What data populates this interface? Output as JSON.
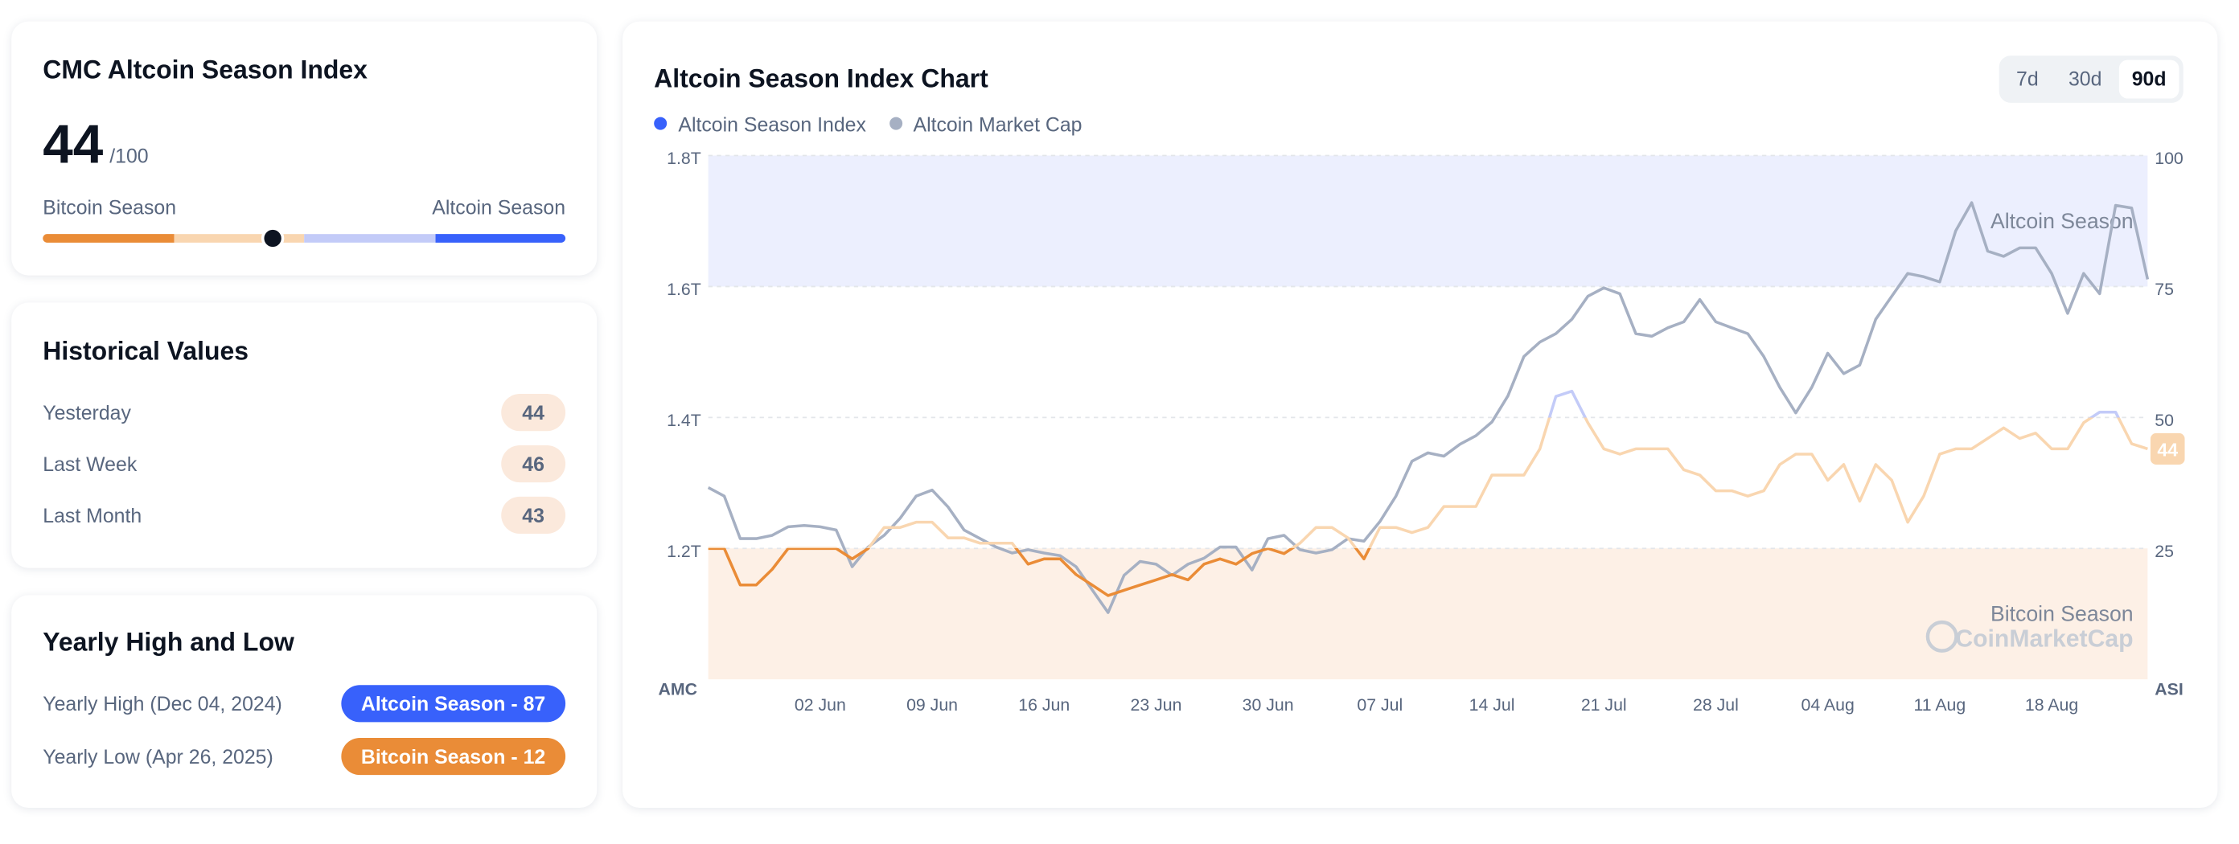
{
  "index_card": {
    "title": "CMC Altcoin Season Index",
    "value": 44,
    "max_label": "/100",
    "left_label": "Bitcoin Season",
    "right_label": "Altcoin Season"
  },
  "historical": {
    "title": "Historical Values",
    "rows": [
      {
        "label": "Yesterday",
        "value": 44
      },
      {
        "label": "Last Week",
        "value": 46
      },
      {
        "label": "Last Month",
        "value": 43
      }
    ]
  },
  "yearly": {
    "title": "Yearly High and Low",
    "rows": [
      {
        "label": "Yearly High",
        "date": "(Dec 04, 2024)",
        "badge": "Altcoin Season - 87",
        "color": "#3861fb"
      },
      {
        "label": "Yearly Low",
        "date": "(Apr 26, 2025)",
        "badge": "Bitcoin Season - 12",
        "color": "#ea8c37"
      }
    ]
  },
  "chart_data": {
    "type": "line",
    "title": "Altcoin Season Index Chart",
    "periods": [
      "7d",
      "30d",
      "90d"
    ],
    "y_label": "AMC",
    "y2_label": "ASI",
    "watermark": "CoinMarketCap",
    "categories": [
      null,
      null,
      null,
      null,
      null,
      null,
      null,
      "02 Jun",
      null,
      null,
      null,
      null,
      null,
      null,
      "09 Jun",
      null,
      null,
      null,
      null,
      null,
      null,
      "16 Jun",
      null,
      null,
      null,
      null,
      null,
      null,
      "23 Jun",
      null,
      null,
      null,
      null,
      null,
      null,
      "30 Jun",
      null,
      null,
      null,
      null,
      null,
      null,
      "07 Jul",
      null,
      null,
      null,
      null,
      null,
      null,
      "14 Jul",
      null,
      null,
      null,
      null,
      null,
      null,
      "21 Jul",
      null,
      null,
      null,
      null,
      null,
      null,
      "28 Jul",
      null,
      null,
      null,
      null,
      null,
      null,
      "04 Aug",
      null,
      null,
      null,
      null,
      null,
      null,
      "11 Aug",
      null,
      null,
      null,
      null,
      null,
      null,
      "18 Aug",
      null,
      null,
      null,
      null,
      null,
      null
    ],
    "series": [
      {
        "name": "Altcoin Season Index",
        "color": "#3861fb",
        "axis": "y2",
        "color_bands": [
          {
            "to": 25,
            "color": "#ea8c37"
          },
          {
            "to": 50,
            "color": "#f9d6b0"
          },
          {
            "to": 75,
            "color": "#c3cbf8"
          },
          {
            "to": 100,
            "color": "#3861fb"
          }
        ],
        "values": [
          25,
          25,
          18,
          18,
          21,
          25,
          25,
          25,
          25,
          23,
          25,
          29,
          29,
          30,
          30,
          27,
          27,
          26,
          26,
          26,
          22,
          23,
          23,
          20,
          18,
          16,
          17,
          18,
          19,
          20,
          19,
          22,
          23,
          22,
          24,
          25,
          24,
          26,
          29,
          29,
          27,
          23,
          29,
          29,
          28,
          29,
          33,
          33,
          33,
          39,
          39,
          39,
          44,
          54,
          55,
          49,
          44,
          43,
          44,
          44,
          44,
          40,
          39,
          36,
          36,
          35,
          36,
          41,
          43,
          43,
          38,
          41,
          34,
          41,
          38,
          30,
          35,
          43,
          44,
          44,
          46,
          48,
          46,
          47,
          44,
          44,
          49,
          51,
          51,
          45,
          44
        ]
      },
      {
        "name": "Altcoin Market Cap",
        "color": "#a6b0c3",
        "values": [
          1293000000000,
          1280000000000,
          1215000000000,
          1215000000000,
          1220000000000,
          1233000000000,
          1235000000000,
          1233000000000,
          1228000000000,
          1172000000000,
          1202000000000,
          1220000000000,
          1246000000000,
          1280000000000,
          1289000000000,
          1263000000000,
          1228000000000,
          1215000000000,
          1202000000000,
          1193000000000,
          1198000000000,
          1193000000000,
          1189000000000,
          1172000000000,
          1137000000000,
          1102000000000,
          1159000000000,
          1180000000000,
          1176000000000,
          1159000000000,
          1176000000000,
          1185000000000,
          1202000000000,
          1202000000000,
          1167000000000,
          1215000000000,
          1220000000000,
          1198000000000,
          1193000000000,
          1198000000000,
          1215000000000,
          1211000000000,
          1241000000000,
          1280000000000,
          1333000000000,
          1346000000000,
          1341000000000,
          1359000000000,
          1372000000000,
          1393000000000,
          1433000000000,
          1493000000000,
          1515000000000,
          1528000000000,
          1550000000000,
          1585000000000,
          1598000000000,
          1589000000000,
          1528000000000,
          1524000000000,
          1537000000000,
          1546000000000,
          1580000000000,
          1546000000000,
          1537000000000,
          1528000000000,
          1493000000000,
          1446000000000,
          1407000000000,
          1446000000000,
          1498000000000,
          1467000000000,
          1480000000000,
          1550000000000,
          1585000000000,
          1620000000000,
          1615000000000,
          1607000000000,
          1685000000000,
          1728000000000,
          1654000000000,
          1646000000000,
          1659000000000,
          1659000000000,
          1620000000000,
          1559000000000,
          1620000000000,
          1589000000000,
          1724000000000,
          1720000000000,
          1611000000000
        ]
      }
    ],
    "zones": [
      {
        "label": "Bitcoin Season",
        "from": 0,
        "to": 25,
        "color": "#fdf0e6"
      },
      {
        "label": "Altcoin Season",
        "from": 75,
        "to": 100,
        "color": "#eceffe"
      }
    ],
    "ylim": [
      1000000000000,
      1800000000000
    ],
    "yticks": [
      {
        "value": 1200000000000,
        "label": "1.2T"
      },
      {
        "value": 1400000000000,
        "label": "1.4T"
      },
      {
        "value": 1600000000000,
        "label": "1.6T"
      },
      {
        "value": 1800000000000,
        "label": "1.8T"
      }
    ],
    "y2lim": [
      0,
      100
    ],
    "y2ticks": [
      25,
      50,
      75,
      100
    ],
    "grid": true
  }
}
